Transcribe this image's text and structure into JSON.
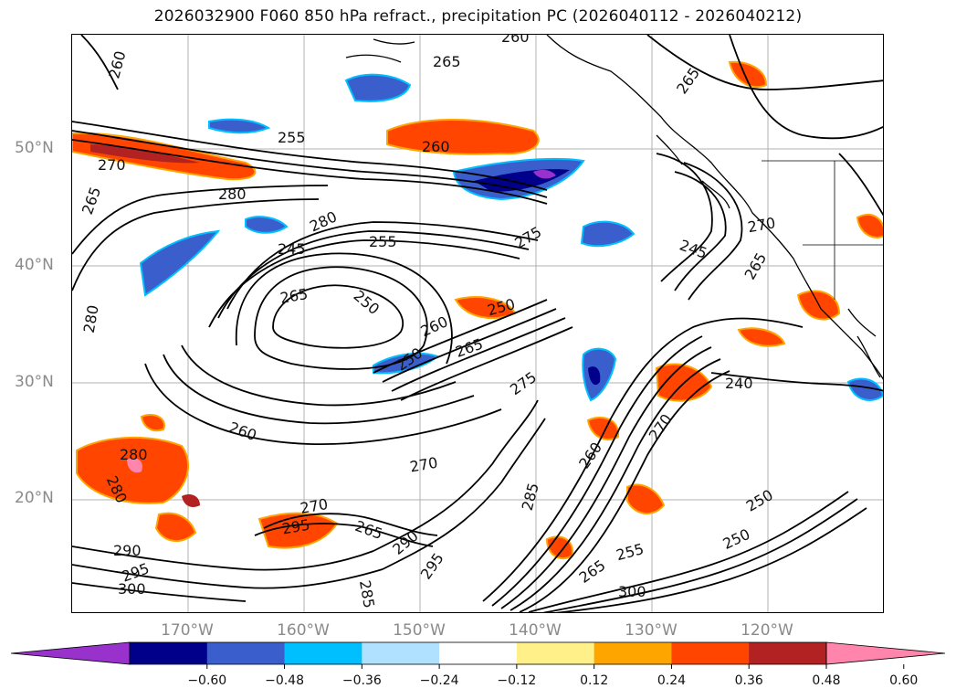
{
  "title": "2026032900 F060 850 hPa refract., precipitation PC (2026040112 - 2026040212)",
  "lat_labels": [
    {
      "label": "50°N",
      "lat": 50
    },
    {
      "label": "40°N",
      "lat": 40
    },
    {
      "label": "30°N",
      "lat": 30
    },
    {
      "label": "20°N",
      "lat": 20
    }
  ],
  "lon_labels": [
    {
      "label": "170°W",
      "lon": -170
    },
    {
      "label": "160°W",
      "lon": -160
    },
    {
      "label": "150°W",
      "lon": -150
    },
    {
      "label": "140°W",
      "lon": -140
    },
    {
      "label": "130°W",
      "lon": -130
    },
    {
      "label": "120°W",
      "lon": -120
    }
  ],
  "contour_labels": [
    "260",
    "265",
    "260",
    "265",
    "255",
    "260",
    "270",
    "265",
    "280",
    "280",
    "275",
    "245",
    "255",
    "265",
    "250",
    "280",
    "250",
    "260",
    "270",
    "265",
    "245",
    "240",
    "250",
    "265",
    "260",
    "275",
    "270",
    "280",
    "270",
    "285",
    "270",
    "265",
    "290",
    "280",
    "295",
    "260",
    "290",
    "295",
    "285",
    "300",
    "255",
    "265",
    "250",
    "295",
    "300",
    "250"
  ],
  "colorbar": {
    "bins": [
      "#9932cc",
      "#00008b",
      "#3a5fcd",
      "#00bfff",
      "#b0e2ff",
      "#ffffff",
      "#fff08a",
      "#ffa500",
      "#ff4500",
      "#b22222",
      "#ff85ad"
    ],
    "ticks": [
      "−0.60",
      "−0.48",
      "−0.36",
      "−0.24",
      "−0.12",
      "0.12",
      "0.24",
      "0.36",
      "0.48",
      "0.60"
    ]
  },
  "colors": {
    "contour": "#000000",
    "coast": "#000000",
    "grid": "#b0b0b0",
    "axis_label": "#8a8a8a"
  }
}
